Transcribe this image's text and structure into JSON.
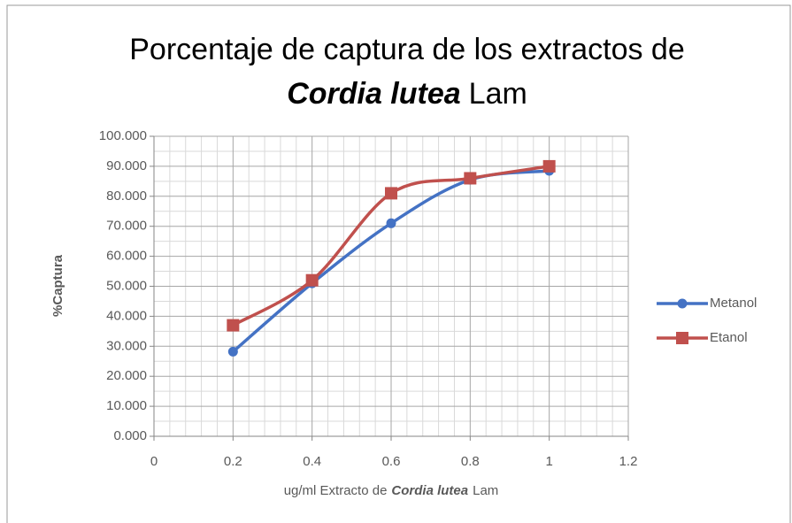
{
  "chart_data": {
    "type": "line",
    "title": [
      "Porcentaje de captura de los extractos de",
      "Cordia lutea",
      "Lam"
    ],
    "x_label": [
      "ug/ml Extracto de",
      "Cordia lutea",
      "Lam"
    ],
    "y_label": "%Captura",
    "x": [
      0.2,
      0.4,
      0.6,
      0.8,
      1
    ],
    "series": [
      {
        "name": "Metanol",
        "color": "#4472c4",
        "marker": "circle",
        "values": [
          28.2,
          51,
          71,
          85.5,
          88.5
        ]
      },
      {
        "name": "Etanol",
        "color": "#c0504d",
        "marker": "square",
        "values": [
          37,
          52,
          81,
          86,
          90
        ]
      }
    ],
    "xlim": [
      0,
      1.2
    ],
    "xticks": [
      0,
      0.2,
      0.4,
      0.6,
      0.8,
      1,
      1.2
    ],
    "ylim": [
      0,
      100
    ],
    "yticks": [
      {
        "value": 0,
        "label": "0.000"
      },
      {
        "value": 10,
        "label": "10.000"
      },
      {
        "value": 20,
        "label": "20.000"
      },
      {
        "value": 30,
        "label": "30.000"
      },
      {
        "value": 40,
        "label": "40.000"
      },
      {
        "value": 50,
        "label": "50.000"
      },
      {
        "value": 60,
        "label": "60.000"
      },
      {
        "value": 70,
        "label": "70.000"
      },
      {
        "value": 80,
        "label": "80.000"
      },
      {
        "value": 90,
        "label": "90.000"
      },
      {
        "value": 100,
        "label": "100.000"
      }
    ],
    "grid": true,
    "minor_grid": true,
    "smooth": true,
    "legend": "right"
  }
}
